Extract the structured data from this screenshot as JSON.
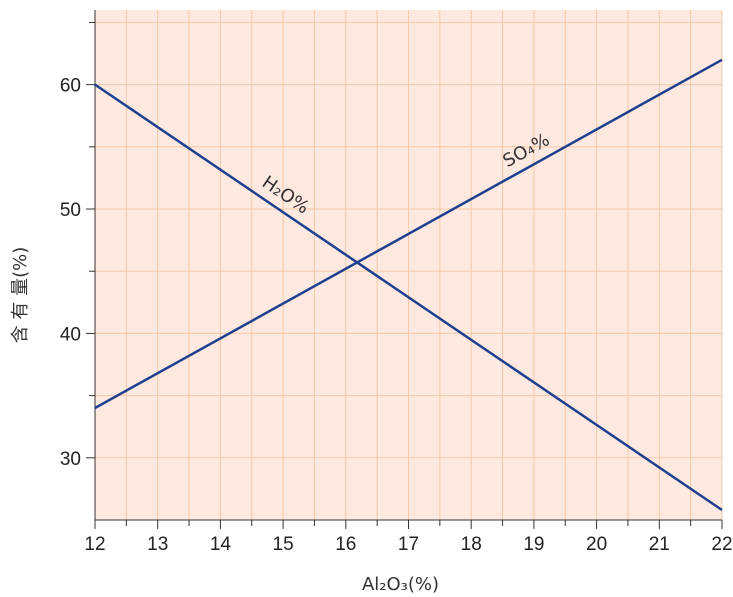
{
  "chart_data": {
    "type": "line",
    "xlabel": "Al₂O₃(%)",
    "ylabel": "含 有 量(%)",
    "xlim": [
      12,
      22
    ],
    "ylim": [
      25,
      66
    ],
    "xticks": [
      12,
      13,
      14,
      15,
      16,
      17,
      18,
      19,
      20,
      21,
      22
    ],
    "yticks": [
      30,
      40,
      50,
      60
    ],
    "grid": true,
    "colors": {
      "background": "#fde9df",
      "grid": "#f6c9a8",
      "line": "#1f3f8f",
      "axis": "#333333"
    },
    "series": [
      {
        "name": "H₂O%",
        "x": [
          12,
          22
        ],
        "y": [
          60,
          25.8
        ]
      },
      {
        "name": "SO₄%",
        "x": [
          12,
          22
        ],
        "y": [
          34,
          62
        ]
      }
    ]
  }
}
